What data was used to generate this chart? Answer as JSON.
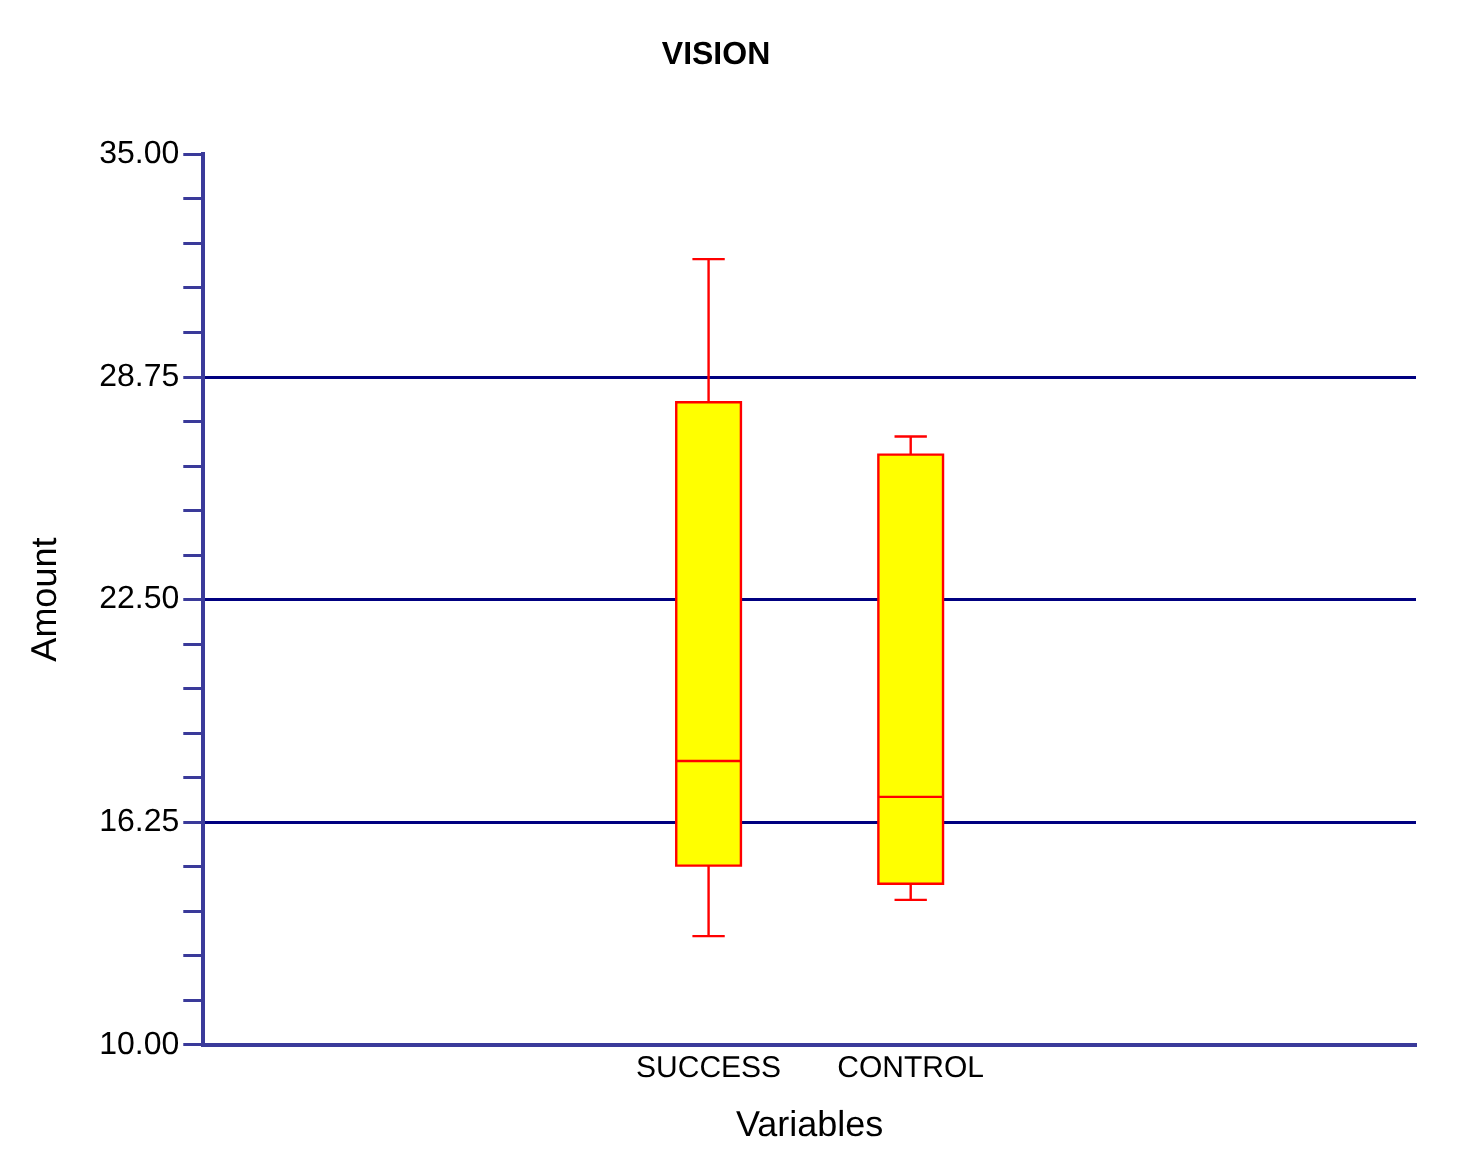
{
  "chart_data": {
    "type": "box",
    "title": "VISION",
    "xlabel": "Variables",
    "ylabel": "Amount",
    "categories": [
      "SUCCESS",
      "CONTROL"
    ],
    "color": "#ffff00",
    "boxes": [
      {
        "low": 13.05,
        "q1": 15.03,
        "median": 17.97,
        "q3": 28.04,
        "high": 32.06
      },
      {
        "low": 14.07,
        "q1": 14.52,
        "median": 16.96,
        "q3": 26.57,
        "high": 27.08
      }
    ],
    "ylim": [
      10,
      35
    ],
    "yticks": [
      {
        "value": 10,
        "label": "10.00"
      },
      {
        "value": 11.25,
        "label": null
      },
      {
        "value": 12.5,
        "label": null
      },
      {
        "value": 13.75,
        "label": null
      },
      {
        "value": 15,
        "label": null
      },
      {
        "value": 16.25,
        "label": "16.25"
      },
      {
        "value": 17.5,
        "label": null
      },
      {
        "value": 18.75,
        "label": null
      },
      {
        "value": 20,
        "label": null
      },
      {
        "value": 21.25,
        "label": null
      },
      {
        "value": 22.5,
        "label": "22.50"
      },
      {
        "value": 23.75,
        "label": null
      },
      {
        "value": 25,
        "label": null
      },
      {
        "value": 26.25,
        "label": null
      },
      {
        "value": 27.5,
        "label": null
      },
      {
        "value": 28.75,
        "label": "28.75"
      },
      {
        "value": 30,
        "label": null
      },
      {
        "value": 31.25,
        "label": null
      },
      {
        "value": 32.5,
        "label": null
      },
      {
        "value": 33.75,
        "label": null
      },
      {
        "value": 35,
        "label": "35.00"
      }
    ],
    "grid": "y"
  }
}
